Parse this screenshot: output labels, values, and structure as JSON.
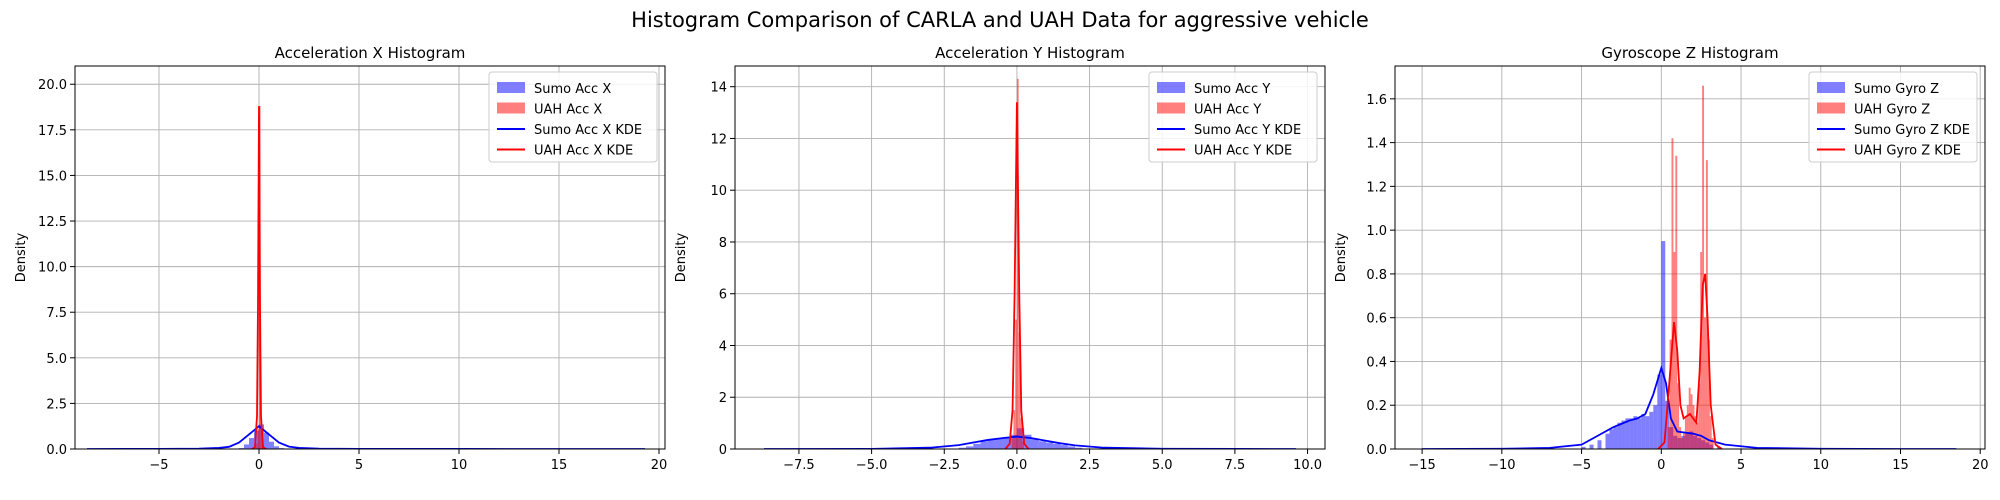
{
  "figure": {
    "title": "Histogram Comparison of CARLA and UAH Data for aggressive vehicle"
  },
  "colors": {
    "sumo": "#0000ff",
    "uah": "#ff0000",
    "grid": "#b0b0b0"
  },
  "chart_data": [
    {
      "type": "histogram",
      "title": "Acceleration X Histogram",
      "xlabel": "",
      "ylabel": "Density",
      "xlim": [
        -9.2,
        20.3
      ],
      "ylim": [
        0,
        21.0
      ],
      "xticks": [
        -5,
        0,
        5,
        10,
        15,
        20
      ],
      "xtick_labels": [
        "−5",
        "0",
        "5",
        "10",
        "15",
        "20"
      ],
      "yticks": [
        0,
        2.5,
        5,
        7.5,
        10,
        12.5,
        15,
        17.5,
        20
      ],
      "ytick_labels": [
        "0.0",
        "2.5",
        "5.0",
        "7.5",
        "10.0",
        "12.5",
        "15.0",
        "17.5",
        "20.0"
      ],
      "grid": true,
      "legend_position": "upper right",
      "legend": [
        "Sumo Acc X",
        "UAH Acc X",
        "Sumo Acc X KDE",
        "UAH Acc X KDE"
      ],
      "series": [
        {
          "name": "Sumo Acc X",
          "kind": "hist",
          "color": "#0000ff",
          "bin_width": 0.25,
          "bins": [
            [
              -1.0,
              0.05
            ],
            [
              -0.75,
              0.25
            ],
            [
              -0.5,
              0.6
            ],
            [
              -0.25,
              1.0
            ],
            [
              0.0,
              1.35
            ],
            [
              0.25,
              0.9
            ],
            [
              0.5,
              0.4
            ],
            [
              0.75,
              0.15
            ],
            [
              1.0,
              0.05
            ]
          ]
        },
        {
          "name": "UAH Acc X",
          "kind": "hist",
          "color": "#ff0000",
          "bin_width": 0.08,
          "bins": [
            [
              -0.16,
              0.3
            ],
            [
              -0.08,
              1.1
            ],
            [
              0.0,
              18.8
            ],
            [
              0.08,
              1.2
            ],
            [
              0.16,
              0.2
            ]
          ]
        },
        {
          "name": "Sumo Acc X KDE",
          "kind": "kde",
          "color": "#0000ff",
          "points": [
            [
              -8.6,
              0
            ],
            [
              -5,
              0.005
            ],
            [
              -3,
              0.02
            ],
            [
              -2,
              0.06
            ],
            [
              -1.5,
              0.12
            ],
            [
              -1,
              0.35
            ],
            [
              -0.5,
              0.8
            ],
            [
              0,
              1.25
            ],
            [
              0.5,
              0.8
            ],
            [
              1,
              0.35
            ],
            [
              1.5,
              0.13
            ],
            [
              2,
              0.06
            ],
            [
              3,
              0.02
            ],
            [
              5,
              0.005
            ],
            [
              10,
              0.002
            ],
            [
              15,
              0.001
            ],
            [
              19.3,
              0
            ]
          ]
        },
        {
          "name": "UAH Acc X KDE",
          "kind": "kde",
          "color": "#ff0000",
          "points": [
            [
              -0.35,
              0
            ],
            [
              -0.2,
              0.1
            ],
            [
              -0.1,
              1.8
            ],
            [
              -0.05,
              8.0
            ],
            [
              0,
              18.8
            ],
            [
              0.05,
              8.0
            ],
            [
              0.1,
              1.8
            ],
            [
              0.2,
              0.1
            ],
            [
              0.35,
              0
            ]
          ]
        }
      ]
    },
    {
      "type": "histogram",
      "title": "Acceleration Y Histogram",
      "xlabel": "",
      "ylabel": "Density",
      "xlim": [
        -9.7,
        10.6
      ],
      "ylim": [
        0,
        14.8
      ],
      "xticks": [
        -7.5,
        -5,
        -2.5,
        0,
        2.5,
        5,
        7.5,
        10
      ],
      "xtick_labels": [
        "−7.5",
        "−5.0",
        "−2.5",
        "0.0",
        "2.5",
        "5.0",
        "7.5",
        "10.0"
      ],
      "yticks": [
        0,
        2,
        4,
        6,
        8,
        10,
        12,
        14
      ],
      "ytick_labels": [
        "0",
        "2",
        "4",
        "6",
        "8",
        "10",
        "12",
        "14"
      ],
      "grid": true,
      "legend_position": "upper right",
      "legend": [
        "Sumo Acc Y",
        "UAH Acc Y",
        "Sumo Acc Y KDE",
        "UAH Acc Y KDE"
      ],
      "series": [
        {
          "name": "Sumo Acc Y",
          "kind": "hist",
          "color": "#0000ff",
          "bin_width": 0.25,
          "bins": [
            [
              -2.0,
              0.05
            ],
            [
              -1.75,
              0.1
            ],
            [
              -1.5,
              0.2
            ],
            [
              -1.25,
              0.3
            ],
            [
              -1.0,
              0.35
            ],
            [
              -0.75,
              0.4
            ],
            [
              -0.5,
              0.45
            ],
            [
              -0.25,
              0.55
            ],
            [
              0.0,
              0.8
            ],
            [
              0.25,
              0.55
            ],
            [
              0.5,
              0.4
            ],
            [
              0.75,
              0.3
            ],
            [
              1.0,
              0.25
            ],
            [
              1.25,
              0.2
            ],
            [
              1.5,
              0.15
            ],
            [
              1.75,
              0.1
            ],
            [
              2.0,
              0.05
            ]
          ]
        },
        {
          "name": "UAH Acc Y",
          "kind": "hist",
          "color": "#ff0000",
          "bin_width": 0.06,
          "bins": [
            [
              -0.18,
              0.4
            ],
            [
              -0.12,
              1.5
            ],
            [
              -0.06,
              5.0
            ],
            [
              0.0,
              14.3
            ],
            [
              0.06,
              4.5
            ],
            [
              0.12,
              1.2
            ],
            [
              0.18,
              0.3
            ]
          ]
        },
        {
          "name": "Sumo Acc Y KDE",
          "kind": "kde",
          "color": "#0000ff",
          "points": [
            [
              -8.7,
              0
            ],
            [
              -5,
              0.005
            ],
            [
              -3,
              0.05
            ],
            [
              -2,
              0.15
            ],
            [
              -1.5,
              0.25
            ],
            [
              -1,
              0.35
            ],
            [
              -0.5,
              0.42
            ],
            [
              0,
              0.48
            ],
            [
              0.5,
              0.42
            ],
            [
              1,
              0.32
            ],
            [
              1.5,
              0.22
            ],
            [
              2,
              0.14
            ],
            [
              3,
              0.05
            ],
            [
              5,
              0.01
            ],
            [
              7.5,
              0.003
            ],
            [
              9.6,
              0
            ]
          ]
        },
        {
          "name": "UAH Acc Y KDE",
          "kind": "kde",
          "color": "#ff0000",
          "points": [
            [
              -0.4,
              0
            ],
            [
              -0.25,
              0.2
            ],
            [
              -0.15,
              1.5
            ],
            [
              -0.08,
              6.0
            ],
            [
              0,
              13.4
            ],
            [
              0.08,
              6.0
            ],
            [
              0.15,
              1.5
            ],
            [
              0.25,
              0.2
            ],
            [
              0.4,
              0
            ]
          ]
        }
      ]
    },
    {
      "type": "histogram",
      "title": "Gyroscope Z Histogram",
      "xlabel": "",
      "ylabel": "Density",
      "xlim": [
        -16.7,
        20.3
      ],
      "ylim": [
        0,
        1.75
      ],
      "xticks": [
        -15,
        -10,
        -5,
        0,
        5,
        10,
        15,
        20
      ],
      "xtick_labels": [
        "−15",
        "−10",
        "−5",
        "0",
        "5",
        "10",
        "15",
        "20"
      ],
      "yticks": [
        0,
        0.2,
        0.4,
        0.6,
        0.8,
        1.0,
        1.2,
        1.4,
        1.6
      ],
      "ytick_labels": [
        "0.0",
        "0.2",
        "0.4",
        "0.6",
        "0.8",
        "1.0",
        "1.2",
        "1.4",
        "1.6"
      ],
      "grid": true,
      "legend_position": "upper right",
      "legend": [
        "Sumo Gyro Z",
        "UAH Gyro Z",
        "Sumo Gyro Z KDE",
        "UAH Gyro Z KDE"
      ],
      "series": [
        {
          "name": "Sumo Gyro Z",
          "kind": "hist",
          "color": "#0000ff",
          "bin_width": 0.25,
          "bins": [
            [
              -5.0,
              0.01
            ],
            [
              -4.5,
              0.02
            ],
            [
              -4.0,
              0.04
            ],
            [
              -3.5,
              0.07
            ],
            [
              -3.25,
              0.09
            ],
            [
              -3.0,
              0.1
            ],
            [
              -2.75,
              0.12
            ],
            [
              -2.5,
              0.13
            ],
            [
              -2.25,
              0.14
            ],
            [
              -2.0,
              0.14
            ],
            [
              -1.75,
              0.15
            ],
            [
              -1.5,
              0.14
            ],
            [
              -1.25,
              0.16
            ],
            [
              -1.0,
              0.15
            ],
            [
              -0.75,
              0.17
            ],
            [
              -0.5,
              0.2
            ],
            [
              -0.25,
              0.34
            ],
            [
              0.0,
              0.95
            ],
            [
              0.25,
              0.22
            ],
            [
              0.5,
              0.1
            ],
            [
              0.75,
              0.06
            ],
            [
              1.0,
              0.05
            ],
            [
              1.25,
              0.06
            ],
            [
              1.5,
              0.07
            ],
            [
              1.75,
              0.08
            ],
            [
              2.0,
              0.06
            ],
            [
              2.25,
              0.05
            ],
            [
              2.5,
              0.04
            ],
            [
              2.75,
              0.03
            ],
            [
              3.0,
              0.02
            ],
            [
              3.5,
              0.01
            ]
          ]
        },
        {
          "name": "UAH Gyro Z",
          "kind": "hist",
          "color": "#ff0000",
          "bin_width": 0.12,
          "bins": [
            [
              0.4,
              0.1
            ],
            [
              0.52,
              0.5
            ],
            [
              0.64,
              1.42
            ],
            [
              0.76,
              0.9
            ],
            [
              0.88,
              1.34
            ],
            [
              1.0,
              0.3
            ],
            [
              1.12,
              0.1
            ],
            [
              1.24,
              0.05
            ],
            [
              1.36,
              0.08
            ],
            [
              1.48,
              0.15
            ],
            [
              1.6,
              0.2
            ],
            [
              1.72,
              0.28
            ],
            [
              1.84,
              0.25
            ],
            [
              1.96,
              0.2
            ],
            [
              2.08,
              0.15
            ],
            [
              2.2,
              0.12
            ],
            [
              2.32,
              0.3
            ],
            [
              2.44,
              0.9
            ],
            [
              2.56,
              1.66
            ],
            [
              2.68,
              0.6
            ],
            [
              2.8,
              1.32
            ],
            [
              2.92,
              0.5
            ],
            [
              3.04,
              0.15
            ],
            [
              3.16,
              0.05
            ]
          ]
        },
        {
          "name": "Sumo Gyro Z KDE",
          "kind": "kde",
          "color": "#0000ff",
          "points": [
            [
              -15,
              0
            ],
            [
              -10,
              0.001
            ],
            [
              -7,
              0.005
            ],
            [
              -5,
              0.02
            ],
            [
              -4,
              0.06
            ],
            [
              -3,
              0.1
            ],
            [
              -2,
              0.13
            ],
            [
              -1.5,
              0.14
            ],
            [
              -1,
              0.16
            ],
            [
              -0.5,
              0.25
            ],
            [
              0,
              0.37
            ],
            [
              0.3,
              0.3
            ],
            [
              0.6,
              0.14
            ],
            [
              1,
              0.08
            ],
            [
              1.5,
              0.075
            ],
            [
              2,
              0.07
            ],
            [
              2.5,
              0.06
            ],
            [
              3,
              0.04
            ],
            [
              4,
              0.02
            ],
            [
              6,
              0.005
            ],
            [
              10,
              0.001
            ],
            [
              15,
              0
            ],
            [
              18.5,
              0
            ]
          ]
        },
        {
          "name": "UAH Gyro Z KDE",
          "kind": "kde",
          "color": "#ff0000",
          "points": [
            [
              -0.2,
              0
            ],
            [
              0.2,
              0.03
            ],
            [
              0.5,
              0.3
            ],
            [
              0.8,
              0.58
            ],
            [
              1.0,
              0.45
            ],
            [
              1.2,
              0.2
            ],
            [
              1.4,
              0.14
            ],
            [
              1.6,
              0.15
            ],
            [
              1.8,
              0.16
            ],
            [
              2.0,
              0.14
            ],
            [
              2.2,
              0.12
            ],
            [
              2.4,
              0.35
            ],
            [
              2.6,
              0.75
            ],
            [
              2.75,
              0.8
            ],
            [
              2.9,
              0.6
            ],
            [
              3.1,
              0.2
            ],
            [
              3.4,
              0.02
            ],
            [
              3.8,
              0
            ]
          ]
        }
      ]
    }
  ]
}
